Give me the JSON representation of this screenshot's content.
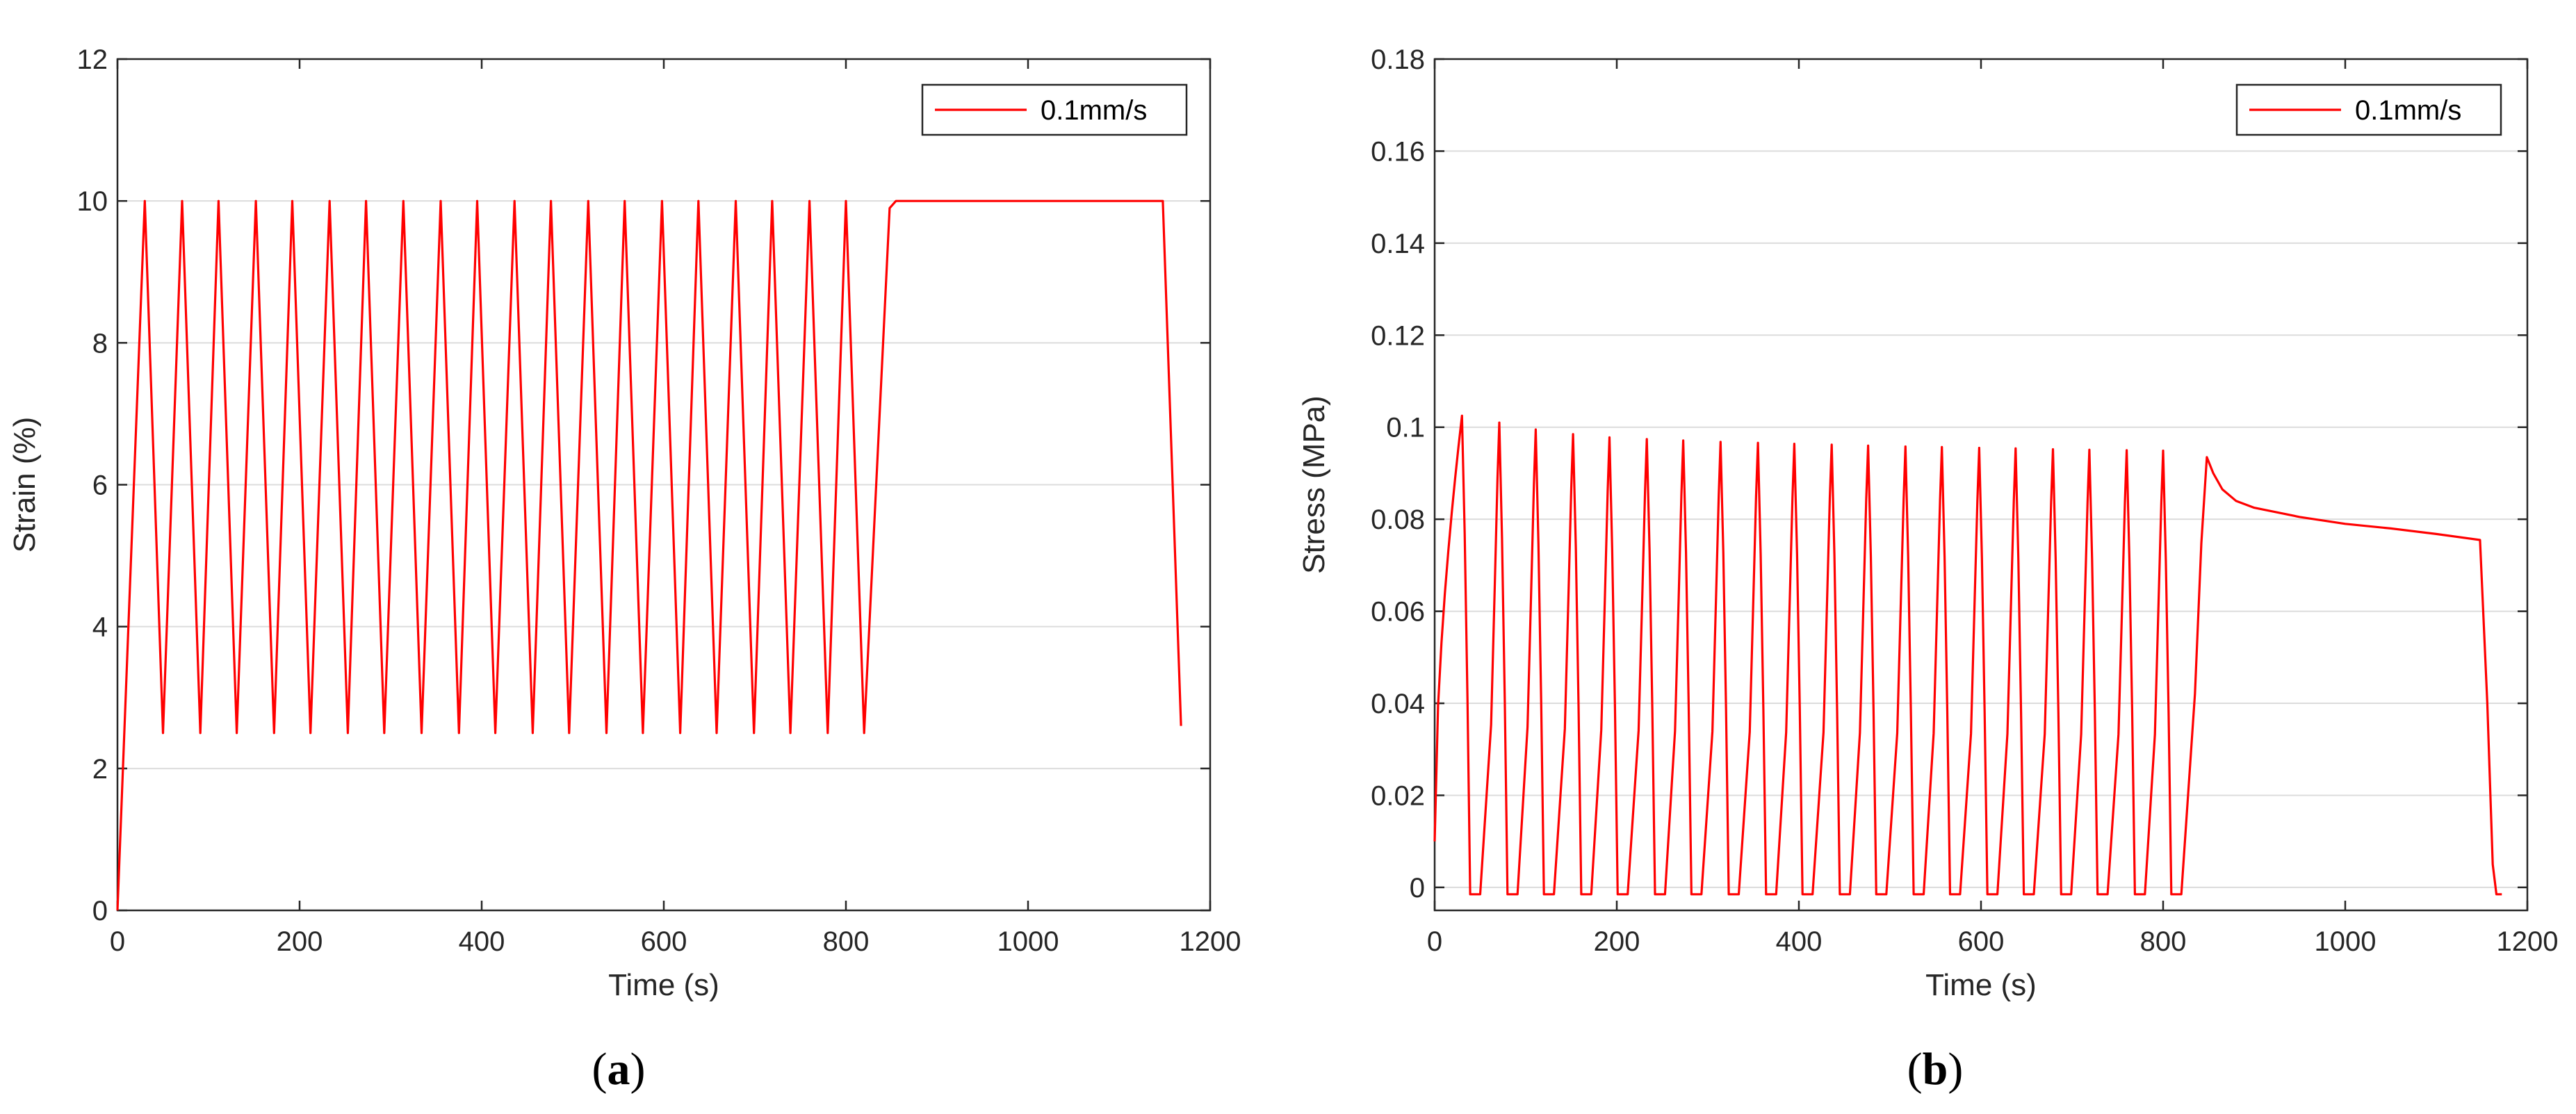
{
  "chart_data": [
    {
      "id": "a",
      "type": "line",
      "panel_label": "a",
      "xlabel": "Time (s)",
      "ylabel": "Strain (%)",
      "xlim": [
        0,
        1200
      ],
      "ylim": [
        0,
        12
      ],
      "xticks": [
        0,
        200,
        400,
        600,
        800,
        1000,
        1200
      ],
      "yticks": [
        0,
        2,
        4,
        6,
        8,
        10,
        12
      ],
      "ytick_labels": [
        "0",
        "2",
        "4",
        "6",
        "8",
        "10",
        "12"
      ],
      "grid": "horizontal",
      "legend": {
        "position": "top-right",
        "label": "0.1mm/s"
      },
      "series": [
        {
          "name": "0.1mm/s",
          "color": "#ff0000",
          "points": [
            [
              0,
              0
            ],
            [
              30,
              10
            ],
            [
              50,
              2.5
            ],
            [
              71,
              10
            ],
            [
              91,
              2.5
            ],
            [
              111,
              10
            ],
            [
              131,
              2.5
            ],
            [
              152,
              10
            ],
            [
              172,
              2.5
            ],
            [
              192,
              10
            ],
            [
              212,
              2.5
            ],
            [
              233,
              10
            ],
            [
              253,
              2.5
            ],
            [
              273,
              10
            ],
            [
              293,
              2.5
            ],
            [
              314,
              10
            ],
            [
              334,
              2.5
            ],
            [
              355,
              10
            ],
            [
              375,
              2.5
            ],
            [
              395,
              10
            ],
            [
              415,
              2.5
            ],
            [
              436,
              10
            ],
            [
              456,
              2.5
            ],
            [
              476,
              10
            ],
            [
              496,
              2.5
            ],
            [
              517,
              10
            ],
            [
              537,
              2.5
            ],
            [
              557,
              10
            ],
            [
              577,
              2.5
            ],
            [
              598,
              10
            ],
            [
              618,
              2.5
            ],
            [
              638,
              10
            ],
            [
              658,
              2.5
            ],
            [
              679,
              10
            ],
            [
              699,
              2.5
            ],
            [
              719,
              10
            ],
            [
              739,
              2.5
            ],
            [
              760,
              10
            ],
            [
              780,
              2.5
            ],
            [
              800,
              10
            ],
            [
              820,
              2.5
            ],
            [
              848,
              9.9
            ],
            [
              855,
              10
            ],
            [
              1148,
              10
            ],
            [
              1168,
              2.6
            ]
          ]
        }
      ]
    },
    {
      "id": "b",
      "type": "line",
      "panel_label": "b",
      "xlabel": "Time (s)",
      "ylabel": "Stress (MPa)",
      "xlim": [
        0,
        1200
      ],
      "ylim": [
        -0.005,
        0.18
      ],
      "xticks": [
        0,
        200,
        400,
        600,
        800,
        1000,
        1200
      ],
      "yticks": [
        0,
        0.02,
        0.04,
        0.06,
        0.08,
        0.1,
        0.12,
        0.14,
        0.16,
        0.18
      ],
      "ytick_labels": [
        "0",
        "0.02",
        "0.04",
        "0.06",
        "0.08",
        "0.1",
        "0.12",
        "0.14",
        "0.16",
        "0.18"
      ],
      "grid": "horizontal",
      "legend": {
        "position": "top-right",
        "label": "0.1mm/s"
      },
      "series": [
        {
          "name": "0.1mm/s",
          "color": "#ff0000",
          "peaks": [
            [
              30,
              0.1025
            ],
            [
              71,
              0.101
            ],
            [
              111,
              0.0995
            ],
            [
              152,
              0.0985
            ],
            [
              192,
              0.0978
            ],
            [
              233,
              0.0974
            ],
            [
              273,
              0.0971
            ],
            [
              314,
              0.0968
            ],
            [
              355,
              0.0966
            ],
            [
              395,
              0.0964
            ],
            [
              436,
              0.0962
            ],
            [
              476,
              0.096
            ],
            [
              517,
              0.0958
            ],
            [
              557,
              0.0957
            ],
            [
              598,
              0.0955
            ],
            [
              638,
              0.0954
            ],
            [
              679,
              0.0952
            ],
            [
              719,
              0.0951
            ],
            [
              760,
              0.095
            ],
            [
              800,
              0.0949
            ]
          ],
          "trough": -0.0015,
          "relaxation": [
            [
              848,
              0.0935
            ],
            [
              855,
              0.09
            ],
            [
              865,
              0.0865
            ],
            [
              880,
              0.084
            ],
            [
              900,
              0.0825
            ],
            [
              950,
              0.0805
            ],
            [
              1000,
              0.079
            ],
            [
              1050,
              0.078
            ],
            [
              1100,
              0.0768
            ],
            [
              1148,
              0.0755
            ]
          ],
          "unload": [
            [
              1148,
              0.0755
            ],
            [
              1156,
              0.04
            ],
            [
              1162,
              0.005
            ],
            [
              1166,
              -0.0015
            ],
            [
              1172,
              -0.0015
            ]
          ],
          "start": [
            0,
            0.01
          ]
        }
      ]
    }
  ]
}
